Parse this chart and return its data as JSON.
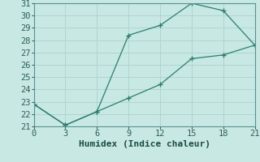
{
  "xlabel": "Humidex (Indice chaleur)",
  "line1_x": [
    0,
    3,
    6,
    9,
    12,
    15,
    18,
    21
  ],
  "line1_y": [
    22.8,
    21.1,
    22.2,
    28.4,
    29.2,
    31.0,
    30.4,
    27.6
  ],
  "line2_x": [
    0,
    3,
    6,
    9,
    12,
    15,
    18,
    21
  ],
  "line2_y": [
    22.8,
    21.1,
    22.2,
    23.3,
    24.4,
    26.5,
    26.8,
    27.6
  ],
  "color": "#2d7d6e",
  "bg_color": "#c8e8e4",
  "grid_color": "#b0d4d0",
  "xlim": [
    0,
    21
  ],
  "ylim": [
    21,
    31
  ],
  "xticks": [
    0,
    3,
    6,
    9,
    12,
    15,
    18,
    21
  ],
  "yticks": [
    21,
    22,
    23,
    24,
    25,
    26,
    27,
    28,
    29,
    30,
    31
  ],
  "xlabel_fontsize": 8,
  "tick_fontsize": 7.5
}
